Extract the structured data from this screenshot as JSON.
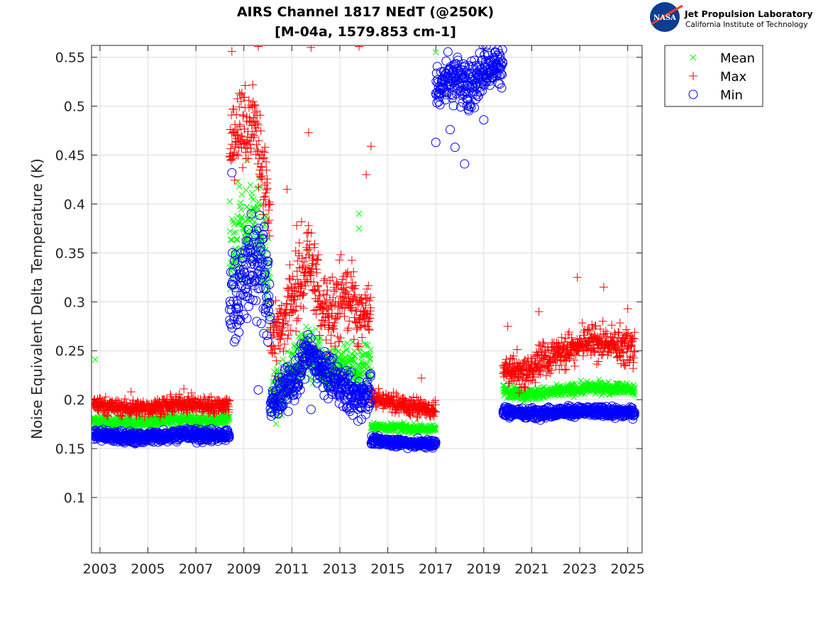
{
  "logo": {
    "agency": "NASA",
    "lab_name": "Jet Propulsion Laboratory",
    "institution": "California Institute of Technology"
  },
  "chart_data": {
    "type": "scatter",
    "title": "AIRS Channel 1817 NEdT (@250K)",
    "subtitle": "[M-04a, 1579.853 cm-1]",
    "xlabel": "",
    "ylabel": "Noise Equivalent Delta Temperature (K)",
    "xlim": [
      2002.65,
      2025.6
    ],
    "ylim": [
      0.0434,
      0.5621
    ],
    "grid": true,
    "legend_position": "outside-top-right",
    "x_ticks": [
      2003,
      2005,
      2007,
      2009,
      2011,
      2013,
      2015,
      2017,
      2019,
      2021,
      2023,
      2025
    ],
    "x_tick_labels": [
      "2003",
      "2005",
      "2007",
      "2009",
      "2011",
      "2013",
      "2015",
      "2017",
      "2019",
      "2021",
      "2023",
      "2025"
    ],
    "y_ticks": [
      0.1,
      0.15,
      0.2,
      0.25,
      0.3,
      0.35,
      0.4,
      0.45,
      0.5,
      0.55
    ],
    "y_tick_labels": [
      "0.1",
      "0.15",
      "0.2",
      "0.25",
      "0.3",
      "0.35",
      "0.4",
      "0.45",
      "0.5",
      "0.55"
    ],
    "series": [
      {
        "name": "Mean",
        "marker": "x",
        "color": "#00ff00",
        "segments": [
          {
            "x_range": [
              2002.7,
              2008.4
            ],
            "center": [
              0.178,
              0.177,
              0.176,
              0.179,
              0.18,
              0.178,
              0.18
            ],
            "spread": 0.006
          },
          {
            "x_range": [
              2008.4,
              2010.1
            ],
            "center": [
              0.34,
              0.36,
              0.38,
              0.39,
              0.37,
              0.3
            ],
            "spread": 0.05
          },
          {
            "x_range": [
              2010.1,
              2014.3
            ],
            "center": [
              0.2,
              0.21,
              0.24,
              0.25,
              0.24,
              0.23,
              0.24,
              0.23,
              0.24
            ],
            "spread": 0.025
          },
          {
            "x_range": [
              2014.3,
              2017.0
            ],
            "center": [
              0.172,
              0.172,
              0.171,
              0.17,
              0.17
            ],
            "spread": 0.004
          },
          {
            "x_range": [
              2019.8,
              2025.3
            ],
            "center": [
              0.21,
              0.205,
              0.207,
              0.21,
              0.212,
              0.212,
              0.21
            ],
            "spread": 0.006
          }
        ],
        "outliers": [
          [
            2002.8,
            0.241
          ],
          [
            2011.7,
            0.35
          ],
          [
            2013.8,
            0.39
          ],
          [
            2013.8,
            0.375
          ],
          [
            2017.0,
            0.555
          ]
        ]
      },
      {
        "name": "Max",
        "marker": "+",
        "color": "#ff0000",
        "segments": [
          {
            "x_range": [
              2002.7,
              2008.4
            ],
            "center": [
              0.196,
              0.192,
              0.191,
              0.193,
              0.196,
              0.194,
              0.195
            ],
            "spread": 0.008
          },
          {
            "x_range": [
              2008.4,
              2010.1
            ],
            "center": [
              0.44,
              0.46,
              0.45,
              0.47,
              0.42,
              0.36
            ],
            "spread": 0.06
          },
          {
            "x_range": [
              2010.1,
              2014.3
            ],
            "center": [
              0.24,
              0.27,
              0.3,
              0.33,
              0.29,
              0.27,
              0.3,
              0.27,
              0.28
            ],
            "spread": 0.045
          },
          {
            "x_range": [
              2014.3,
              2017.0
            ],
            "center": [
              0.2,
              0.195,
              0.19,
              0.188,
              0.186
            ],
            "spread": 0.012
          },
          {
            "x_range": [
              2019.8,
              2025.3
            ],
            "center": [
              0.225,
              0.222,
              0.235,
              0.245,
              0.255,
              0.25,
              0.245
            ],
            "spread": 0.022
          }
        ],
        "outliers": [
          [
            2004.3,
            0.208
          ],
          [
            2006.5,
            0.211
          ],
          [
            2008.5,
            0.556
          ],
          [
            2009.6,
            0.561
          ],
          [
            2011.8,
            0.56
          ],
          [
            2011.7,
            0.473
          ],
          [
            2013.8,
            0.561
          ],
          [
            2014.3,
            0.459
          ],
          [
            2014.1,
            0.43
          ],
          [
            2010.8,
            0.415
          ],
          [
            2011.2,
            0.378
          ],
          [
            2016.4,
            0.222
          ],
          [
            2020.0,
            0.275
          ],
          [
            2021.3,
            0.29
          ],
          [
            2022.9,
            0.325
          ],
          [
            2024.0,
            0.315
          ],
          [
            2025.0,
            0.293
          ]
        ]
      },
      {
        "name": "Min",
        "marker": "o",
        "color": "#0000ff",
        "segments": [
          {
            "x_range": [
              2002.7,
              2008.4
            ],
            "center": [
              0.165,
              0.162,
              0.161,
              0.163,
              0.165,
              0.163,
              0.164
            ],
            "spread": 0.006
          },
          {
            "x_range": [
              2008.4,
              2010.1
            ],
            "center": [
              0.3,
              0.31,
              0.33,
              0.34,
              0.33,
              0.3
            ],
            "spread": 0.05
          },
          {
            "x_range": [
              2010.1,
              2014.3
            ],
            "center": [
              0.19,
              0.21,
              0.22,
              0.25,
              0.23,
              0.22,
              0.21,
              0.2,
              0.21
            ],
            "spread": 0.02
          },
          {
            "x_range": [
              2014.3,
              2017.0
            ],
            "center": [
              0.158,
              0.157,
              0.156,
              0.155,
              0.155
            ],
            "spread": 0.004
          },
          {
            "x_range": [
              2017.0,
              2019.8
            ],
            "center": [
              0.52,
              0.53,
              0.52,
              0.54,
              0.54
            ],
            "spread": 0.025
          },
          {
            "x_range": [
              2019.8,
              2025.3
            ],
            "center": [
              0.188,
              0.186,
              0.187,
              0.188,
              0.188,
              0.187,
              0.187
            ],
            "spread": 0.005
          }
        ],
        "outliers": [
          [
            2008.5,
            0.432
          ],
          [
            2009.6,
            0.21
          ],
          [
            2011.8,
            0.19
          ],
          [
            2017.0,
            0.463
          ],
          [
            2017.6,
            0.476
          ],
          [
            2017.8,
            0.458
          ],
          [
            2018.2,
            0.441
          ],
          [
            2019.0,
            0.486
          ]
        ]
      }
    ]
  }
}
